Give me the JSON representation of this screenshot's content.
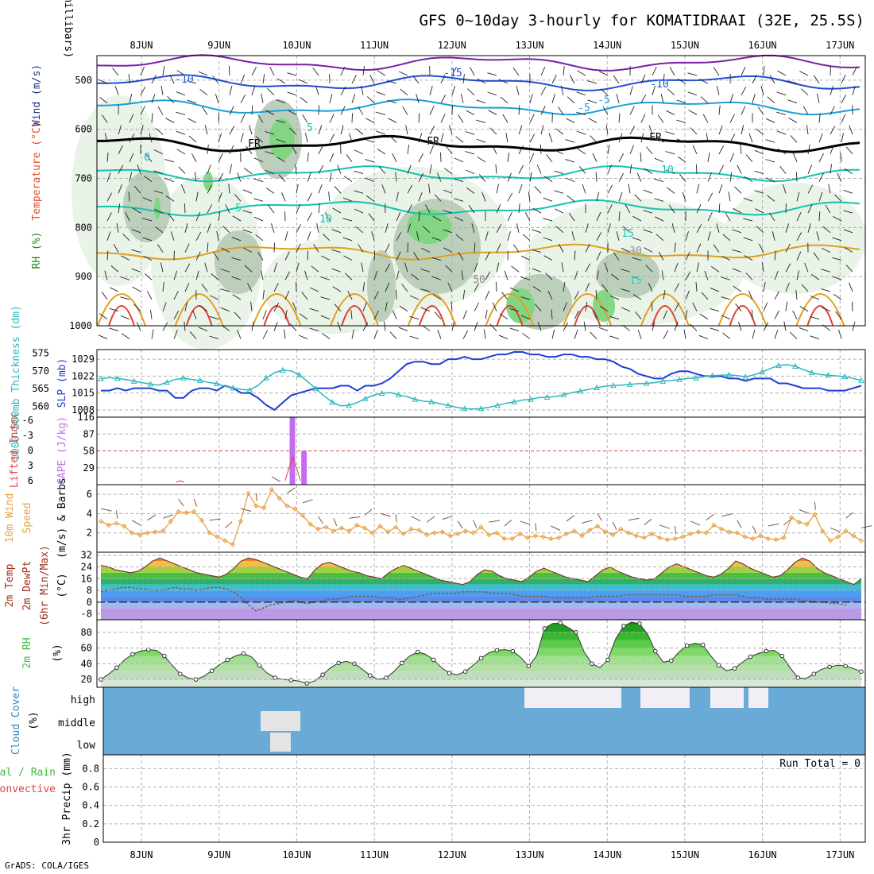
{
  "title": "GFS 0~10day 3-hourly for KOMATIDRAAI (32E, 25.5S)",
  "credit": "GrADS: COLA/IGES",
  "colors": {
    "grid": "#b0b0b0",
    "rh_light": "#e8f2e6",
    "rh_mid": "#b9ccb8",
    "rh_green": "#7ed67e",
    "temp_cold": "#1f4fd0",
    "temp_mid": "#1aa0d8",
    "temp_teal": "#14c2b0",
    "temp_warm": "#e0a020",
    "temp_hot": "#e04030",
    "purple": "#7a1fa8",
    "slp": "#1f3fd0",
    "thick": "#2ab7c0",
    "cape": "#c46cf0",
    "li": "#e04040",
    "wind": "#e8a040",
    "barb": "#7a5a3a",
    "rh2m": "#40b840",
    "cloud": "#6aaad6",
    "cloud_clear": "#f2eef6",
    "cloud_gap": "#e4e4e4",
    "precip_total": "#40b840",
    "precip_conv": "#e04040"
  },
  "chart_data": [
    {
      "id": "upper-air",
      "type": "heatmap",
      "title": "Temperature (°C) / Wind (m/s) / RH (%)",
      "ylabel": "(millibars)",
      "ylim": [
        1000,
        450
      ],
      "y_ticks": [
        500,
        600,
        700,
        800,
        900,
        1000
      ],
      "x_ticks": [
        "8JUN",
        "9JUN",
        "10JUN",
        "11JUN",
        "12JUN",
        "13JUN",
        "14JUN",
        "15JUN",
        "16JUN",
        "17JUN"
      ],
      "side_labels": [
        "Wind (m/s)",
        "Temperature (°C)",
        "RH (%)"
      ],
      "contour_labels": [
        "-15",
        "-10",
        "-10",
        "-5",
        "-5",
        "5",
        "5",
        "10",
        "10",
        "15",
        "15",
        "FR",
        "FR",
        "FR",
        "0",
        "30",
        "50"
      ],
      "isotherms": [
        {
          "label": "-15",
          "p": 465,
          "color": "purple"
        },
        {
          "label": "-10",
          "p": 505,
          "color": "temp_cold"
        },
        {
          "label": "-5",
          "p": 555,
          "color": "temp_mid"
        },
        {
          "label": "FR",
          "p": 630,
          "color": "black"
        },
        {
          "label": "5",
          "p": 690,
          "color": "temp_teal"
        },
        {
          "label": "10",
          "p": 760,
          "color": "temp_teal"
        },
        {
          "label": "15",
          "p": 850,
          "color": "temp_warm"
        }
      ]
    },
    {
      "id": "slp-thickness",
      "type": "line",
      "ylabel_left": "1000-500mb Thickness (dm)",
      "ylabel_right": "SLP (mb)",
      "thickness_ticks": [
        560,
        565,
        570,
        575
      ],
      "slp_ticks": [
        1008,
        1015,
        1022,
        1029
      ],
      "series": [
        {
          "name": "SLP (mb)",
          "axis": "slp",
          "values": [
            1016,
            1016,
            1017,
            1016,
            1017,
            1017,
            1017,
            1016,
            1016,
            1013,
            1013,
            1016,
            1017,
            1017,
            1016,
            1018,
            1017,
            1015,
            1015,
            1013,
            1010,
            1008,
            1011,
            1014,
            1015,
            1016,
            1017,
            1017,
            1017,
            1018,
            1018,
            1016,
            1018,
            1018,
            1019,
            1021,
            1024,
            1027,
            1028,
            1028,
            1027,
            1027,
            1029,
            1029,
            1030,
            1029,
            1029,
            1030,
            1031,
            1031,
            1032,
            1032,
            1031,
            1031,
            1030,
            1030,
            1031,
            1031,
            1030,
            1030,
            1029,
            1029,
            1028,
            1026,
            1025,
            1023,
            1022,
            1021,
            1021,
            1023,
            1024,
            1024,
            1023,
            1022,
            1022,
            1022,
            1021,
            1021,
            1020,
            1021,
            1021,
            1021,
            1019,
            1019,
            1018,
            1017,
            1017,
            1017,
            1016,
            1016,
            1016,
            1017,
            1018
          ]
        },
        {
          "name": "1000-500mb Thickness (dm)",
          "axis": "thickness",
          "values": [
            567.8,
            568.1,
            567.9,
            567.6,
            567.1,
            566.7,
            566.3,
            566.0,
            566.8,
            567.6,
            568.0,
            567.6,
            567.3,
            566.8,
            566.4,
            565.7,
            565.2,
            564.8,
            564.6,
            565.9,
            568.0,
            569.5,
            570.2,
            570.0,
            568.9,
            567.0,
            565.0,
            563.0,
            561.2,
            560.2,
            560.3,
            561.1,
            562.2,
            563.2,
            563.7,
            563.9,
            563.3,
            562.8,
            562.0,
            561.5,
            561.3,
            560.8,
            560.3,
            559.8,
            559.4,
            559.3,
            559.4,
            559.8,
            560.3,
            560.9,
            561.3,
            561.8,
            562.0,
            562.5,
            562.6,
            562.8,
            563.3,
            563.9,
            564.3,
            564.8,
            565.3,
            565.7,
            565.9,
            566.0,
            566.2,
            566.4,
            566.5,
            566.7,
            567.1,
            567.3,
            567.6,
            567.9,
            568.0,
            568.4,
            568.7,
            568.8,
            568.9,
            568.7,
            568.3,
            568.9,
            569.7,
            570.7,
            571.5,
            571.8,
            571.3,
            570.4,
            569.5,
            569.0,
            568.8,
            568.6,
            568.4,
            567.9,
            567.3
          ]
        }
      ]
    },
    {
      "id": "cape-li",
      "type": "bar",
      "ylabel_left": "Lifted Index",
      "ylabel_right": "CAPE (J/kg)",
      "li_ticks": [
        "-6",
        "-3",
        "0",
        "3",
        "6"
      ],
      "cape_ticks": [
        116,
        87,
        58,
        29
      ],
      "cape_bars": [
        {
          "day": 1.95,
          "value": 116
        },
        {
          "day": 2.1,
          "value": 58
        }
      ]
    },
    {
      "id": "wind-10m",
      "type": "line",
      "ylabel": "10m Wind Speed & Barbs (m/s)",
      "y_ticks": [
        2,
        4,
        6
      ],
      "ylim": [
        0,
        7
      ],
      "values": [
        3.2,
        2.8,
        3.0,
        2.7,
        2.0,
        1.8,
        2.0,
        2.1,
        2.2,
        3.2,
        4.2,
        4.1,
        4.2,
        3.3,
        2.0,
        1.6,
        1.2,
        0.8,
        3.2,
        6.1,
        4.8,
        4.6,
        6.5,
        5.6,
        4.8,
        4.5,
        3.8,
        2.9,
        2.4,
        2.6,
        2.2,
        2.5,
        2.2,
        2.8,
        2.5,
        2.0,
        2.7,
        2.1,
        2.6,
        1.9,
        2.4,
        2.3,
        1.8,
        2.0,
        2.1,
        1.7,
        1.9,
        2.2,
        2.0,
        2.6,
        1.8,
        2.0,
        1.4,
        1.4,
        1.9,
        1.5,
        1.7,
        1.6,
        1.4,
        1.5,
        1.9,
        2.2,
        1.7,
        2.3,
        2.7,
        2.1,
        1.8,
        2.4,
        2.0,
        1.7,
        1.5,
        1.9,
        1.5,
        1.3,
        1.4,
        1.6,
        1.9,
        2.1,
        2.0,
        2.8,
        2.4,
        2.1,
        2.0,
        1.6,
        1.4,
        1.7,
        1.4,
        1.3,
        1.5,
        3.6,
        3.1,
        2.9,
        3.9,
        2.2,
        1.2,
        1.6,
        2.2,
        1.7,
        1.2
      ]
    },
    {
      "id": "temp-2m",
      "type": "area",
      "ylabel": "2m Temp 2m DewPt (6hr Min/Max) (°C)",
      "y_ticks": [
        32,
        24,
        16,
        8,
        0,
        -8
      ],
      "ylim": [
        -12,
        34
      ],
      "temperature": [
        25,
        24,
        22,
        21,
        20,
        21,
        24,
        28,
        30,
        28,
        26,
        24,
        22,
        20,
        19,
        18,
        17,
        19,
        23,
        28,
        30,
        29,
        27,
        25,
        23,
        21,
        19,
        17,
        16,
        22,
        26,
        27,
        25,
        23,
        21,
        20,
        18,
        17,
        16,
        20,
        23,
        25,
        23,
        21,
        19,
        17,
        15,
        14,
        13,
        12,
        14,
        19,
        22,
        21,
        18,
        16,
        15,
        14,
        17,
        21,
        23,
        21,
        19,
        17,
        16,
        15,
        14,
        18,
        22,
        24,
        21,
        19,
        17,
        16,
        15,
        16,
        20,
        24,
        26,
        24,
        22,
        20,
        18,
        17,
        19,
        23,
        28,
        26,
        23,
        21,
        19,
        17,
        18,
        22,
        27,
        30,
        28,
        23,
        20,
        18,
        16,
        14,
        12,
        16
      ],
      "dewpoint": [
        7,
        8,
        9,
        10,
        10,
        9,
        9,
        8,
        8,
        9,
        10,
        9,
        9,
        8,
        9,
        10,
        10,
        9,
        7,
        3,
        -2,
        -6,
        -4,
        -2,
        -1,
        0,
        1,
        0,
        -1,
        0,
        1,
        2,
        2,
        3,
        4,
        4,
        4,
        4,
        3,
        3,
        2,
        2,
        3,
        4,
        5,
        6,
        6,
        6,
        6,
        7,
        7,
        7,
        7,
        6,
        6,
        6,
        5,
        4,
        4,
        4,
        4,
        3,
        3,
        3,
        3,
        3,
        3,
        4,
        4,
        4,
        4,
        5,
        5,
        5,
        5,
        5,
        5,
        5,
        5,
        4,
        4,
        4,
        4,
        5,
        5,
        5,
        5,
        4,
        3,
        3,
        2,
        2,
        2,
        2,
        2,
        1,
        1,
        0,
        0,
        -1,
        -1,
        -2
      ]
    },
    {
      "id": "rh-2m",
      "type": "area",
      "ylabel": "2m RH (%)",
      "y_ticks": [
        20,
        40,
        60,
        80
      ],
      "ylim": [
        10,
        96
      ],
      "values": [
        20,
        27,
        35,
        45,
        52,
        56,
        58,
        57,
        50,
        38,
        27,
        22,
        20,
        24,
        31,
        39,
        45,
        50,
        53,
        49,
        38,
        28,
        22,
        20,
        19,
        18,
        15,
        18,
        26,
        35,
        41,
        43,
        40,
        33,
        25,
        20,
        22,
        30,
        41,
        50,
        55,
        52,
        45,
        35,
        28,
        26,
        30,
        38,
        47,
        54,
        57,
        58,
        56,
        48,
        37,
        50,
        85,
        91,
        92,
        86,
        80,
        55,
        40,
        35,
        45,
        72,
        88,
        93,
        91,
        78,
        56,
        42,
        44,
        55,
        63,
        66,
        64,
        50,
        38,
        31,
        34,
        42,
        49,
        53,
        56,
        57,
        50,
        35,
        22,
        21,
        27,
        33,
        36,
        38,
        37,
        34,
        30
      ]
    },
    {
      "id": "cloud-cover",
      "type": "heatmap",
      "ylabel": "Cloud Cover (%)",
      "levels": [
        "high",
        "middle",
        "low"
      ]
    },
    {
      "id": "precip-3hr",
      "type": "bar",
      "ylabel": "3hr Precip (mm)",
      "legend": [
        "Total / Rain",
        "Convective"
      ],
      "y_ticks": [
        0,
        0.2,
        0.4,
        0.6,
        0.8
      ],
      "ylim": [
        0,
        0.95
      ],
      "run_total": "Run Total = 0",
      "values": []
    }
  ]
}
